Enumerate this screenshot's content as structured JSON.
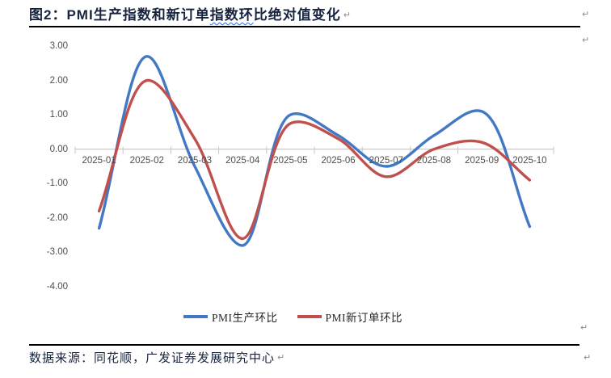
{
  "title": {
    "prefix": "图2：",
    "pre": "PMI生产指数和新订单",
    "wavy": "指数环",
    "post": "比绝对值变化"
  },
  "marks": {
    "glyph": "↵"
  },
  "source": {
    "text": "数据来源：同花顺，广发证券发展研究中心"
  },
  "chart_data": {
    "type": "line",
    "title": "PMI生产指数和新订单指数环比绝对值变化",
    "smoothed": true,
    "gridlines": false,
    "legend_position": "bottom",
    "categories": [
      "2025-01",
      "2025-02",
      "2025-03",
      "2025-04",
      "2025-05",
      "2025-06",
      "2025-07",
      "2025-08",
      "2025-09",
      "2025-10"
    ],
    "series": [
      {
        "name": "PMI生产环比",
        "color": "#4379C4",
        "values": [
          -2.3,
          2.7,
          -0.5,
          -2.8,
          1.0,
          0.4,
          -0.5,
          0.4,
          1.1,
          -2.25
        ]
      },
      {
        "name": "PMI新订单环比",
        "color": "#C0504D",
        "values": [
          -1.8,
          2.0,
          0.3,
          -2.6,
          0.75,
          0.3,
          -0.8,
          0.0,
          0.2,
          -0.9
        ]
      }
    ],
    "y_axis": {
      "ticks": [
        "3.00",
        "2.00",
        "1.00",
        "0.00",
        "-1.00",
        "-2.00",
        "-3.00",
        "-4.00"
      ],
      "max": 3,
      "min": -4,
      "step": 1
    },
    "axis_color": "#C6C6C6"
  }
}
